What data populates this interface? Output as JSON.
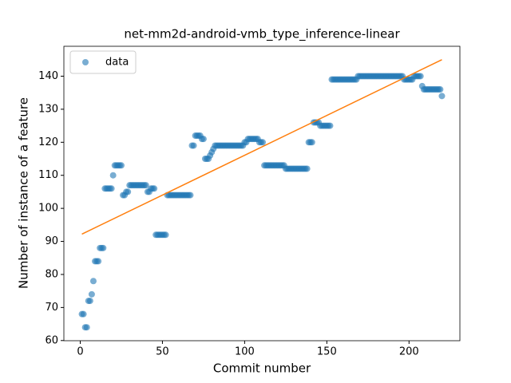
{
  "chart_data": {
    "type": "scatter",
    "title": "net-mm2d-android-vmb_type_inference-linear",
    "x_label": "Commit number",
    "y_label": "Number of instance of a feature",
    "xlim": [
      -9.95,
      230.95
    ],
    "ylim": [
      59.95,
      149.05
    ],
    "xticks": [
      0,
      50,
      100,
      150,
      200
    ],
    "yticks": [
      60,
      70,
      80,
      90,
      100,
      110,
      120,
      130,
      140
    ],
    "legend": "upper left",
    "series": [
      {
        "name": "data",
        "color": "#1f77b4",
        "opacity": 0.6,
        "x": [
          1,
          2,
          3,
          4,
          5,
          6,
          7,
          8,
          9,
          10,
          11,
          12,
          13,
          14,
          15,
          16,
          17,
          18,
          19,
          20,
          21,
          22,
          23,
          24,
          25,
          26,
          27,
          28,
          29,
          30,
          31,
          32,
          33,
          34,
          35,
          36,
          37,
          38,
          39,
          40,
          41,
          42,
          43,
          44,
          45,
          46,
          47,
          48,
          49,
          50,
          51,
          52,
          53,
          54,
          55,
          56,
          57,
          58,
          59,
          60,
          61,
          62,
          63,
          64,
          65,
          66,
          67,
          68,
          69,
          70,
          71,
          72,
          73,
          74,
          75,
          76,
          77,
          78,
          79,
          80,
          81,
          82,
          83,
          84,
          85,
          86,
          87,
          88,
          89,
          90,
          91,
          92,
          93,
          94,
          95,
          96,
          97,
          98,
          99,
          100,
          101,
          102,
          103,
          104,
          105,
          106,
          107,
          108,
          109,
          110,
          111,
          112,
          113,
          114,
          115,
          116,
          117,
          118,
          119,
          120,
          121,
          122,
          123,
          124,
          125,
          126,
          127,
          128,
          129,
          130,
          131,
          132,
          133,
          134,
          135,
          136,
          137,
          138,
          139,
          140,
          141,
          142,
          143,
          144,
          145,
          146,
          147,
          148,
          149,
          150,
          151,
          152,
          153,
          154,
          155,
          156,
          157,
          158,
          159,
          160,
          161,
          162,
          163,
          164,
          165,
          166,
          167,
          168,
          169,
          170,
          171,
          172,
          173,
          174,
          175,
          176,
          177,
          178,
          179,
          180,
          181,
          182,
          183,
          184,
          185,
          186,
          187,
          188,
          189,
          190,
          191,
          192,
          193,
          194,
          195,
          196,
          197,
          198,
          199,
          200,
          201,
          202,
          203,
          204,
          205,
          206,
          207,
          208,
          209,
          210,
          211,
          212,
          213,
          214,
          215,
          216,
          217,
          218,
          219,
          220
        ],
        "values": [
          68,
          68,
          64,
          64,
          72,
          72,
          74,
          78,
          84,
          84,
          84,
          88,
          88,
          88,
          106,
          106,
          106,
          106,
          106,
          110,
          113,
          113,
          113,
          113,
          113,
          104,
          104,
          105,
          105,
          107,
          107,
          107,
          107,
          107,
          107,
          107,
          107,
          107,
          107,
          107,
          105,
          105,
          106,
          106,
          106,
          92,
          92,
          92,
          92,
          92,
          92,
          92,
          104,
          104,
          104,
          104,
          104,
          104,
          104,
          104,
          104,
          104,
          104,
          104,
          104,
          104,
          104,
          119,
          119,
          122,
          122,
          122,
          122,
          121,
          121,
          115,
          115,
          115,
          116,
          117,
          118,
          119,
          119,
          119,
          119,
          119,
          119,
          119,
          119,
          119,
          119,
          119,
          119,
          119,
          119,
          119,
          119,
          119,
          119,
          120,
          120,
          121,
          121,
          121,
          121,
          121,
          121,
          121,
          120,
          120,
          120,
          113,
          113,
          113,
          113,
          113,
          113,
          113,
          113,
          113,
          113,
          113,
          113,
          113,
          112,
          112,
          112,
          112,
          112,
          112,
          112,
          112,
          112,
          112,
          112,
          112,
          112,
          112,
          120,
          120,
          120,
          126,
          126,
          126,
          126,
          125,
          125,
          125,
          125,
          125,
          125,
          125,
          139,
          139,
          139,
          139,
          139,
          139,
          139,
          139,
          139,
          139,
          139,
          139,
          139,
          139,
          139,
          139,
          140,
          140,
          140,
          140,
          140,
          140,
          140,
          140,
          140,
          140,
          140,
          140,
          140,
          140,
          140,
          140,
          140,
          140,
          140,
          140,
          140,
          140,
          140,
          140,
          140,
          140,
          140,
          140,
          139,
          139,
          139,
          139,
          139,
          139,
          140,
          140,
          140,
          140,
          140,
          137,
          136,
          136,
          136,
          136,
          136,
          136,
          136,
          136,
          136,
          136,
          136,
          134
        ]
      },
      {
        "type": "line",
        "color": "#ff7f0e",
        "x": [
          1,
          220
        ],
        "values": [
          92.2,
          145
        ]
      }
    ]
  }
}
